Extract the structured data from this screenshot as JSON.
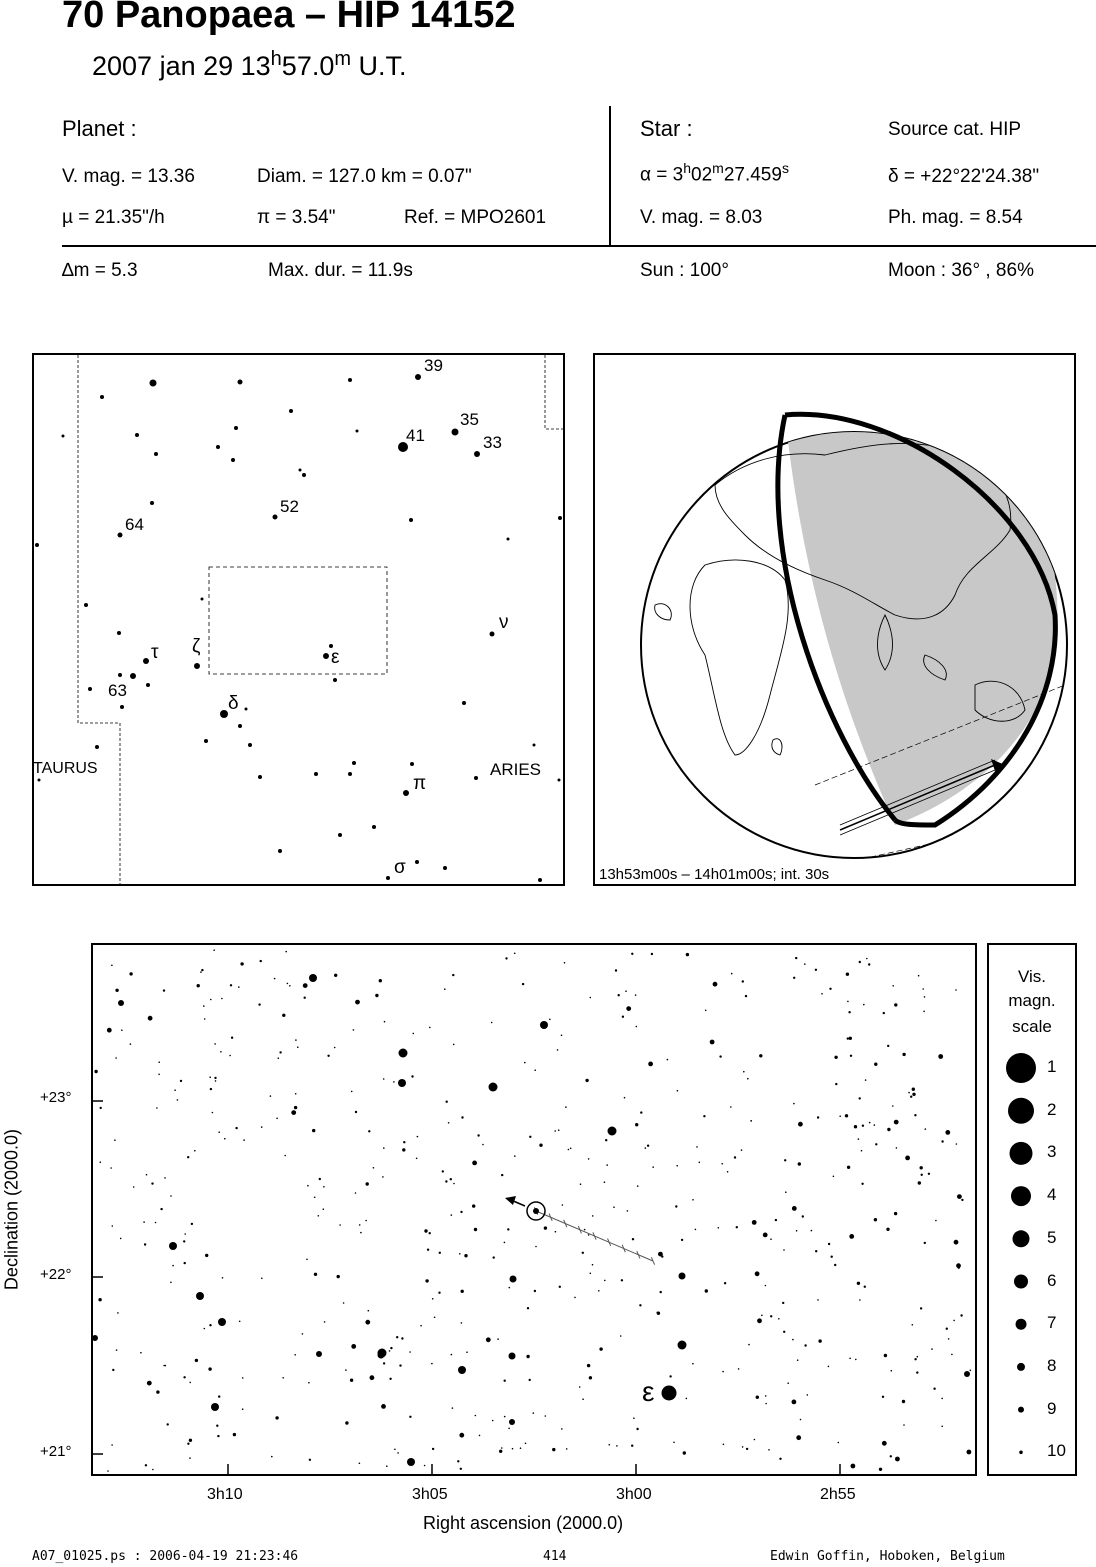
{
  "header": {
    "title": "70 Panopaea  –  HIP 14152",
    "date": "2007 jan 29  13",
    "time_h_sup": "h",
    "time_min": "57.0",
    "time_m_sup": "m",
    "time_suffix": " U.T."
  },
  "planet": {
    "label": "Planet :",
    "vmag": "V. mag. = 13.36",
    "diam": "Diam. = 127.0 km = 0.07\"",
    "mu": "µ =  21.35\"/h",
    "pi": "π =  3.54\"",
    "ref": "Ref. = MPO2601"
  },
  "star": {
    "label": "Star :",
    "source": "Source cat.  HIP",
    "alpha_prefix": "α =  3",
    "alpha_h": "h",
    "alpha_min": "02",
    "alpha_m": "m",
    "alpha_sec": "27.459",
    "alpha_s": "s",
    "delta": "δ = +22°22'24.38\"",
    "vmag": "V. mag. =  8.03",
    "phmag": "Ph. mag. =  8.54"
  },
  "summary": {
    "dm": "∆m = 5.3",
    "maxdur": "Max. dur. = 11.9s",
    "sun": "Sun : 100°",
    "moon": "Moon :  36° , 86%"
  },
  "finder": {
    "labels": {
      "s39": "39",
      "s35": "35",
      "s41": "41",
      "s33": "33",
      "s52": "52",
      "s64": "64",
      "s63": "63",
      "tau": "τ",
      "zeta": "ζ",
      "eps": "ε",
      "nu": "ν",
      "delta": "δ",
      "pi": "π",
      "sigma": "σ",
      "taurus": "TAURUS",
      "aries": "ARIES"
    }
  },
  "globe": {
    "caption": "13h53m00s – 14h01m00s; int. 30s"
  },
  "chart": {
    "ylabel": "Declination (2000.0)",
    "xlabel": "Right ascension (2000.0)",
    "yticks": [
      "+23°",
      "+22°",
      "+21°"
    ],
    "xticks": [
      "3h10",
      "3h05",
      "3h00",
      "2h55"
    ],
    "eps_label": "ε"
  },
  "scale": {
    "title1": "Vis.",
    "title2": "magn.",
    "title3": "scale",
    "mags": [
      "1",
      "2",
      "3",
      "4",
      "5",
      "6",
      "7",
      "8",
      "9",
      "10"
    ]
  },
  "footer": {
    "file": "A07_01025.ps : 2006-04-19 21:23:46",
    "page": "414",
    "author": "Edwin Goffin, Hoboken, Belgium"
  },
  "chart_data": {
    "type": "scatter",
    "title": "",
    "xlabel": "Right ascension (2000.0)",
    "ylabel": "Declination (2000.0)",
    "x_tick_labels": [
      "3h10",
      "3h05",
      "3h00",
      "2h55"
    ],
    "y_tick_labels": [
      "+23°",
      "+22°",
      "+21°"
    ],
    "xlim_deg": [
      47.9,
      44.6
    ],
    "ylim_deg": [
      20.9,
      23.9
    ],
    "target_star": {
      "ra": "3h02m27.459s",
      "dec": "+22°22'24.38\"",
      "vmag": 8.03
    },
    "magnitude_scale": [
      1,
      2,
      3,
      4,
      5,
      6,
      7,
      8,
      9,
      10
    ]
  }
}
